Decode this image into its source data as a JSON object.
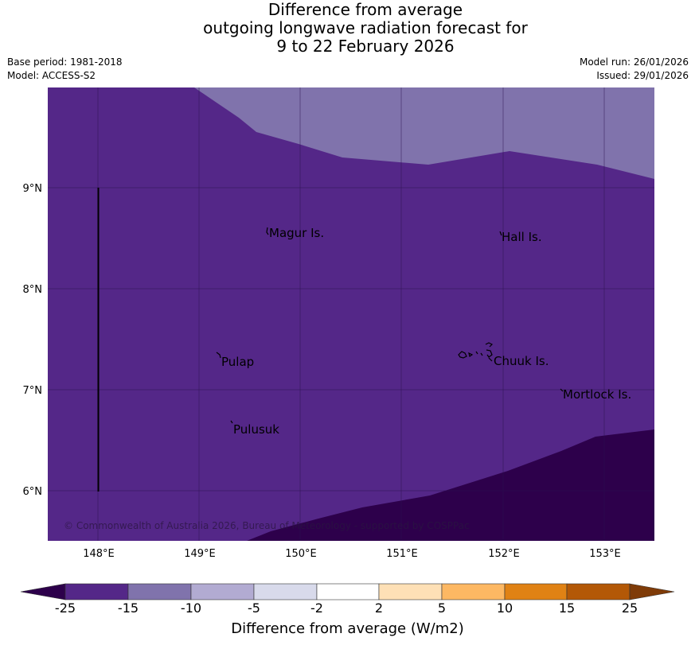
{
  "title": {
    "line1": "Difference from average",
    "line2": "outgoing longwave radiation forecast for",
    "line3": "9 to 22 February 2026"
  },
  "meta": {
    "base_period": "Base period: 1981-2018",
    "model": "Model: ACCESS-S2",
    "model_run": "Model run: 26/01/2026",
    "issued": "Issued: 29/01/2026"
  },
  "map": {
    "copyright": "© Commonwealth of Australia 2026, Bureau of Meteorology - supported by COSPPac",
    "lon_ticks": [
      "148°E",
      "149°E",
      "150°E",
      "151°E",
      "152°E",
      "153°E"
    ],
    "lat_ticks": [
      "9°N",
      "8°N",
      "7°N",
      "6°N"
    ],
    "places": [
      "Magur Is.",
      "Hall Is.",
      "Pulap",
      "Chuuk Is.",
      "Mortlock Is.",
      "Pulusuk"
    ]
  },
  "colorbar": {
    "label": "Difference from average (W/m2)",
    "ticks": [
      "-25",
      "-15",
      "-10",
      "-5",
      "-2",
      "2",
      "5",
      "10",
      "15",
      "25"
    ],
    "colors": [
      "#2d004b",
      "#542788",
      "#8073ac",
      "#b2abd2",
      "#d8daeb",
      "#ffffff",
      "#fee0b6",
      "#fdb863",
      "#e08214",
      "#b35806",
      "#7f3b08"
    ]
  }
}
